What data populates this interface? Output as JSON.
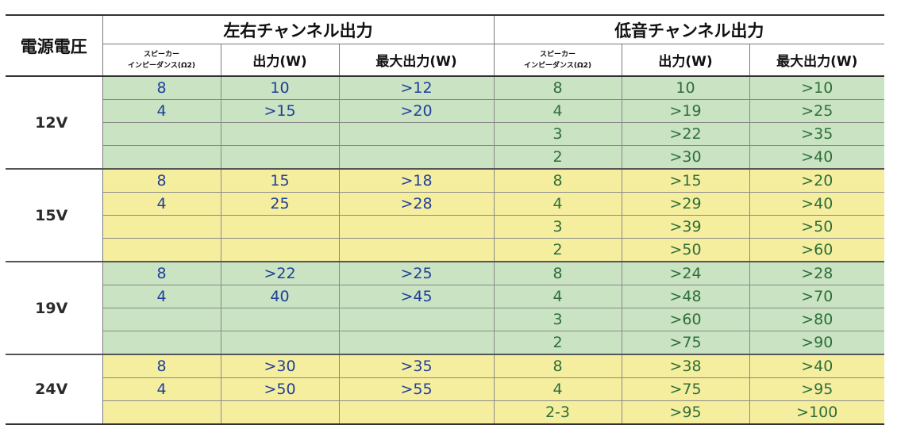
{
  "header": {
    "supply_voltage": "電源電圧",
    "lr_group": "左右チャンネル出力",
    "lfe_group": "低音チャンネル出力",
    "columns": {
      "impedance_line1": "スピーカー",
      "impedance_line2": "インピーダンス(Ω2)",
      "output": "出力(W)",
      "max_output": "最大出力(W)"
    }
  },
  "groups": [
    {
      "voltage": "12V",
      "color": "#c9e3c3",
      "rows": [
        {
          "lr_imp": "8",
          "lr_out": "10",
          "lr_max": ">12",
          "lf_imp": "8",
          "lf_out": "10",
          "lf_max": ">10"
        },
        {
          "lr_imp": "4",
          "lr_out": ">15",
          "lr_max": ">20",
          "lf_imp": "4",
          "lf_out": ">19",
          "lf_max": ">25"
        },
        {
          "lr_imp": "",
          "lr_out": "",
          "lr_max": "",
          "lf_imp": "3",
          "lf_out": ">22",
          "lf_max": ">35"
        },
        {
          "lr_imp": "",
          "lr_out": "",
          "lr_max": "",
          "lf_imp": "2",
          "lf_out": ">30",
          "lf_max": ">40"
        }
      ]
    },
    {
      "voltage": "15V",
      "color": "#f6ee9f",
      "rows": [
        {
          "lr_imp": "8",
          "lr_out": "15",
          "lr_max": ">18",
          "lf_imp": "8",
          "lf_out": ">15",
          "lf_max": ">20"
        },
        {
          "lr_imp": "4",
          "lr_out": "25",
          "lr_max": ">28",
          "lf_imp": "4",
          "lf_out": ">29",
          "lf_max": ">40"
        },
        {
          "lr_imp": "",
          "lr_out": "",
          "lr_max": "",
          "lf_imp": "3",
          "lf_out": ">39",
          "lf_max": ">50"
        },
        {
          "lr_imp": "",
          "lr_out": "",
          "lr_max": "",
          "lf_imp": "2",
          "lf_out": ">50",
          "lf_max": ">60"
        }
      ]
    },
    {
      "voltage": "19V",
      "color": "#c9e3c3",
      "rows": [
        {
          "lr_imp": "8",
          "lr_out": ">22",
          "lr_max": ">25",
          "lf_imp": "8",
          "lf_out": ">24",
          "lf_max": ">28"
        },
        {
          "lr_imp": "4",
          "lr_out": "40",
          "lr_max": ">45",
          "lf_imp": "4",
          "lf_out": ">48",
          "lf_max": ">70"
        },
        {
          "lr_imp": "",
          "lr_out": "",
          "lr_max": "",
          "lf_imp": "3",
          "lf_out": ">60",
          "lf_max": ">80"
        },
        {
          "lr_imp": "",
          "lr_out": "",
          "lr_max": "",
          "lf_imp": "2",
          "lf_out": ">75",
          "lf_max": ">90"
        }
      ]
    },
    {
      "voltage": "24V",
      "color": "#f6ee9f",
      "rows": [
        {
          "lr_imp": "8",
          "lr_out": ">30",
          "lr_max": ">35",
          "lf_imp": "8",
          "lf_out": ">38",
          "lf_max": ">40"
        },
        {
          "lr_imp": "4",
          "lr_out": ">50",
          "lr_max": ">55",
          "lf_imp": "4",
          "lf_out": ">75",
          "lf_max": ">95"
        },
        {
          "lr_imp": "",
          "lr_out": "",
          "lr_max": "",
          "lf_imp": "2-3",
          "lf_out": ">95",
          "lf_max": ">100"
        }
      ]
    }
  ]
}
